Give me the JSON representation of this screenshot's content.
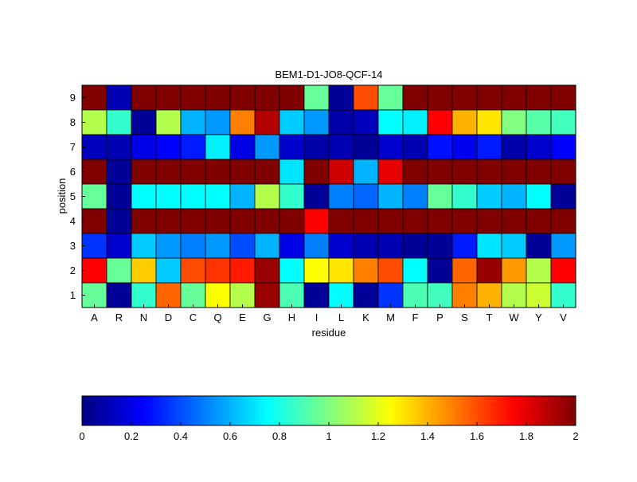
{
  "chart_data": {
    "type": "heatmap",
    "title": "BEM1-D1-JO8-QCF-14",
    "xlabel": "residue",
    "ylabel": "position",
    "x_categories": [
      "A",
      "R",
      "N",
      "D",
      "C",
      "Q",
      "E",
      "G",
      "H",
      "I",
      "L",
      "K",
      "M",
      "F",
      "P",
      "S",
      "T",
      "W",
      "Y",
      "V"
    ],
    "y_categories": [
      "1",
      "2",
      "3",
      "4",
      "5",
      "6",
      "7",
      "8",
      "9"
    ],
    "colormap": "jet",
    "clim": [
      0,
      2
    ],
    "colorbar": {
      "placement": "bottom",
      "ticks": [
        "0",
        "0.2",
        "0.4",
        "0.6",
        "0.8",
        "1",
        "1.2",
        "1.4",
        "1.6",
        "1.8",
        "2"
      ]
    },
    "grid": true,
    "rows": [
      {
        "position": "9",
        "values": [
          2.0,
          0.1,
          2.0,
          2.0,
          2.0,
          2.0,
          2.0,
          2.0,
          2.0,
          0.95,
          0.05,
          1.6,
          0.95,
          2.0,
          2.0,
          2.0,
          2.0,
          2.0,
          2.0,
          2.0
        ]
      },
      {
        "position": "8",
        "values": [
          1.1,
          0.85,
          0.05,
          1.1,
          0.6,
          0.55,
          1.5,
          1.9,
          0.65,
          0.55,
          0.08,
          0.12,
          0.75,
          0.72,
          1.75,
          1.4,
          1.3,
          1.0,
          0.92,
          0.88
        ]
      },
      {
        "position": "7",
        "values": [
          0.12,
          0.1,
          0.2,
          0.25,
          0.3,
          0.72,
          0.2,
          0.55,
          0.15,
          0.08,
          0.1,
          0.05,
          0.15,
          0.1,
          0.28,
          0.22,
          0.3,
          0.08,
          0.15,
          0.25
        ]
      },
      {
        "position": "6",
        "values": [
          2.0,
          0.05,
          2.0,
          2.0,
          2.0,
          2.0,
          2.0,
          2.0,
          0.7,
          2.0,
          1.85,
          0.6,
          1.8,
          2.0,
          2.0,
          2.0,
          2.0,
          2.0,
          2.0,
          2.0
        ]
      },
      {
        "position": "5",
        "values": [
          0.95,
          0.05,
          0.75,
          0.75,
          0.75,
          0.75,
          0.6,
          1.1,
          0.85,
          0.05,
          0.5,
          0.45,
          0.6,
          0.5,
          0.95,
          0.85,
          0.65,
          0.6,
          0.75,
          0.05
        ]
      },
      {
        "position": "4",
        "values": [
          2.0,
          0.05,
          2.0,
          2.0,
          2.0,
          2.0,
          2.0,
          2.0,
          2.0,
          1.75,
          2.0,
          2.0,
          2.0,
          2.0,
          2.0,
          2.0,
          2.0,
          2.0,
          2.0,
          2.0
        ]
      },
      {
        "position": "3",
        "values": [
          0.35,
          0.15,
          0.65,
          0.55,
          0.5,
          0.55,
          0.4,
          0.6,
          0.2,
          0.5,
          0.15,
          0.1,
          0.1,
          0.05,
          0.05,
          0.3,
          0.7,
          0.65,
          0.05,
          0.55
        ]
      },
      {
        "position": "2",
        "values": [
          1.75,
          0.95,
          1.35,
          0.65,
          1.6,
          1.65,
          1.7,
          1.95,
          0.75,
          1.25,
          1.3,
          1.5,
          1.6,
          0.75,
          0.05,
          1.55,
          1.95,
          1.45,
          1.1,
          1.75
        ]
      },
      {
        "position": "1",
        "values": [
          0.95,
          0.05,
          0.85,
          1.55,
          0.95,
          1.25,
          1.1,
          1.95,
          0.9,
          0.05,
          0.75,
          0.05,
          0.35,
          0.9,
          0.88,
          1.5,
          1.4,
          1.1,
          1.15,
          0.85
        ]
      }
    ]
  }
}
